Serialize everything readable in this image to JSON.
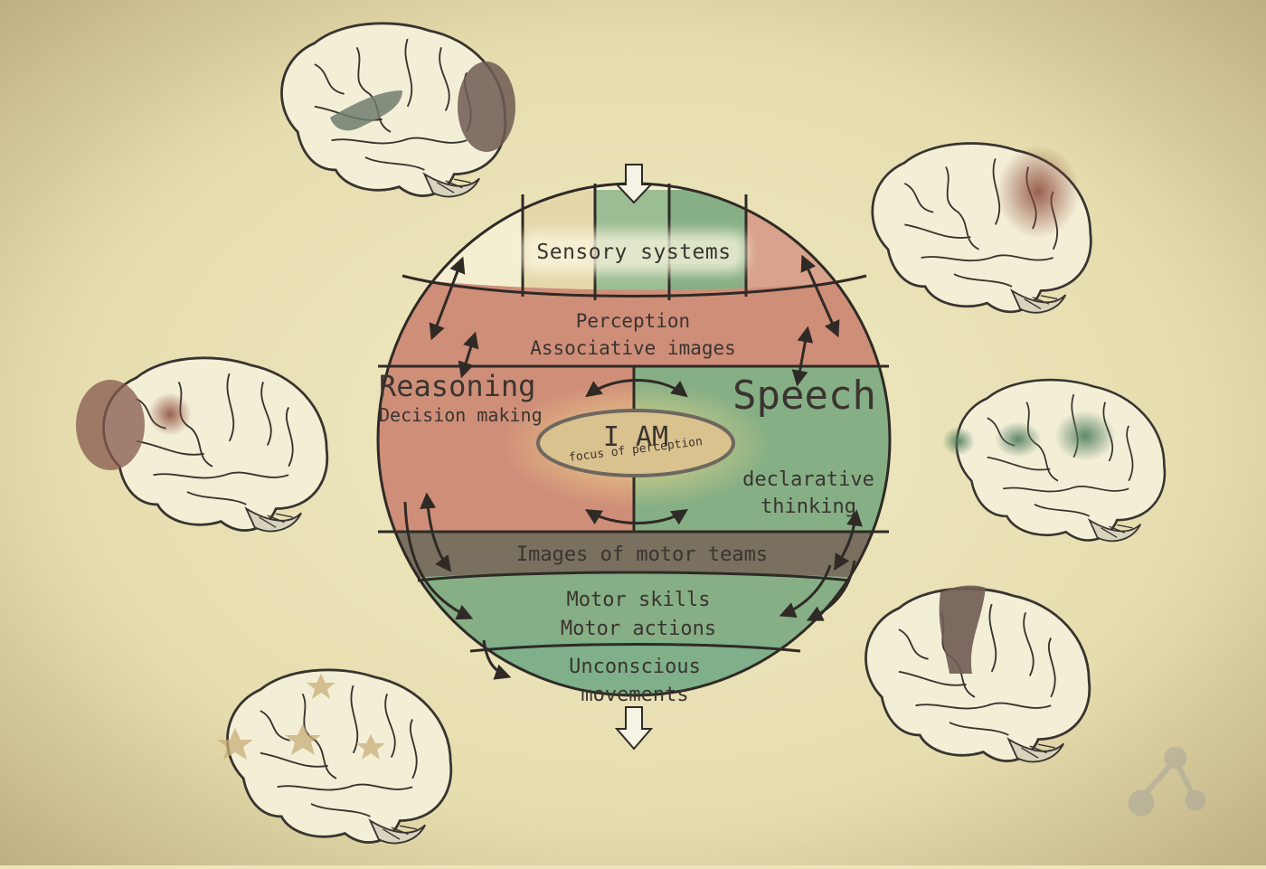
{
  "diagram": {
    "layers": {
      "sensory": "Sensory systems",
      "perception": [
        "Perception",
        "Associative images"
      ],
      "reasoning": "Reasoning",
      "decision": "Decision making",
      "speech": "Speech",
      "center_title": "I AM",
      "center_subtitle": "focus of perception",
      "declarative": [
        "declarative",
        "thinking"
      ],
      "motor_images": "Images of motor teams",
      "motor_skills": [
        "Motor skills",
        "Motor actions"
      ],
      "unconscious": [
        "Unconscious",
        "movements"
      ]
    },
    "colors": {
      "background": "#ece6ba",
      "red_zone": "#cf8e78",
      "green_zone": "#86af85",
      "motor_band": "#79705f",
      "center_ellipse": "#d9c28e",
      "outline": "#2f2a26"
    },
    "brains": [
      {
        "name": "brain-top-left-icon"
      },
      {
        "name": "brain-top-right-icon"
      },
      {
        "name": "brain-mid-left-icon"
      },
      {
        "name": "brain-mid-right-icon"
      },
      {
        "name": "brain-bottom-left-icon"
      },
      {
        "name": "brain-bottom-right-icon"
      }
    ],
    "logo": "network-logo-icon"
  }
}
